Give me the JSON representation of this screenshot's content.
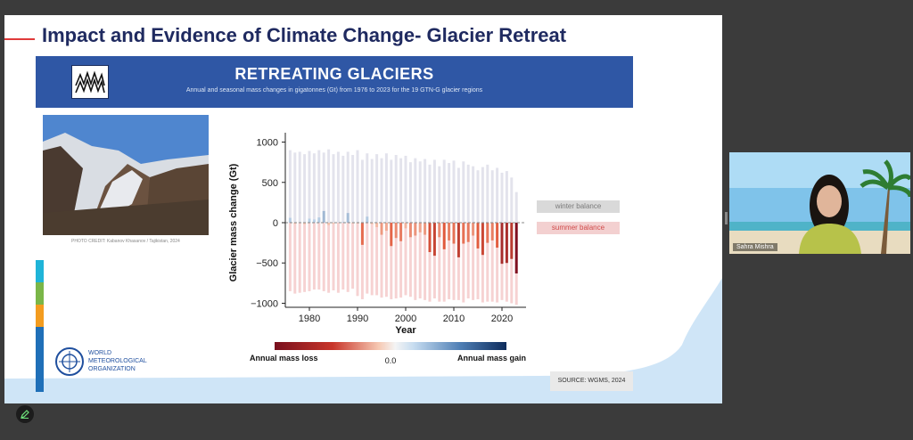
{
  "slide": {
    "title": "Impact and Evidence of Climate Change- Glacier Retreat",
    "banner_title": "RETREATING GLACIERS",
    "banner_subtitle": "Annual and seasonal mass changes in gigatonnes (Gt) from 1976 to 2023 for the 19 GTN-G glacier regions",
    "photo_credit": "PHOTO CREDIT: Kabanov Khasanov / Tajikistan, 2024",
    "source": "SOURCE: WGMS, 2024",
    "org_name": [
      "WORLD",
      "METEOROLOGICAL",
      "ORGANIZATION"
    ],
    "accent_color": "#2f57a5",
    "title_color": "#1f2a60"
  },
  "chart_data": {
    "type": "bar",
    "ylabel": "Glacier mass change (Gt)",
    "xlabel": "Year",
    "ylim": [
      -1050,
      1050
    ],
    "xlim": [
      1975,
      2025
    ],
    "yticks": [
      1000,
      500,
      0,
      -500,
      -1000
    ],
    "xticks": [
      1980,
      1990,
      2000,
      2010,
      2020
    ],
    "years": [
      1976,
      1977,
      1978,
      1979,
      1980,
      1981,
      1982,
      1983,
      1984,
      1985,
      1986,
      1987,
      1988,
      1989,
      1990,
      1991,
      1992,
      1993,
      1994,
      1995,
      1996,
      1997,
      1998,
      1999,
      2000,
      2001,
      2002,
      2003,
      2004,
      2005,
      2006,
      2007,
      2008,
      2009,
      2010,
      2011,
      2012,
      2013,
      2014,
      2015,
      2016,
      2017,
      2018,
      2019,
      2020,
      2021,
      2022,
      2023
    ],
    "series": [
      {
        "name": "winter balance",
        "values": [
          900,
          870,
          880,
          850,
          890,
          860,
          900,
          870,
          910,
          850,
          880,
          830,
          880,
          840,
          900,
          780,
          860,
          790,
          850,
          800,
          860,
          780,
          840,
          800,
          830,
          750,
          800,
          760,
          790,
          720,
          780,
          700,
          780,
          740,
          770,
          680,
          760,
          720,
          700,
          650,
          690,
          720,
          650,
          680,
          620,
          640,
          560,
          380
        ]
      },
      {
        "name": "summer balance",
        "values": [
          -850,
          -880,
          -870,
          -860,
          -850,
          -830,
          -830,
          -850,
          -870,
          -840,
          -870,
          -830,
          -860,
          -820,
          -910,
          -950,
          -880,
          -900,
          -900,
          -930,
          -920,
          -950,
          -940,
          -930,
          -900,
          -920,
          -960,
          -940,
          -960,
          -980,
          -940,
          -980,
          -980,
          -950,
          -960,
          -960,
          -990,
          -940,
          -960,
          -950,
          -990,
          -980,
          -980,
          -990,
          -960,
          -980,
          -1000,
          -1020
        ]
      },
      {
        "name": "annual balance",
        "values": [
          60,
          -15,
          5,
          -20,
          50,
          40,
          65,
          145,
          -30,
          -15,
          -5,
          10,
          120,
          -10,
          -10,
          -275,
          75,
          -20,
          -55,
          -150,
          -100,
          -290,
          -190,
          -230,
          -70,
          -180,
          -160,
          -120,
          -150,
          -365,
          -410,
          -180,
          -330,
          -220,
          -260,
          -430,
          -260,
          -240,
          -160,
          -320,
          -400,
          -250,
          -220,
          -310,
          -510,
          -500,
          -450,
          -630
        ]
      }
    ],
    "colorbar": {
      "left_label": "Annual mass loss",
      "center_label": "0.0",
      "right_label": "Annual mass gain"
    },
    "legend": [
      "winter balance",
      "summer balance"
    ],
    "legend_position": "right"
  },
  "video": {
    "name": "Sahra Mishra"
  },
  "colors": {
    "winter": "#e3e3ec",
    "summer": "#f6d2d2"
  }
}
